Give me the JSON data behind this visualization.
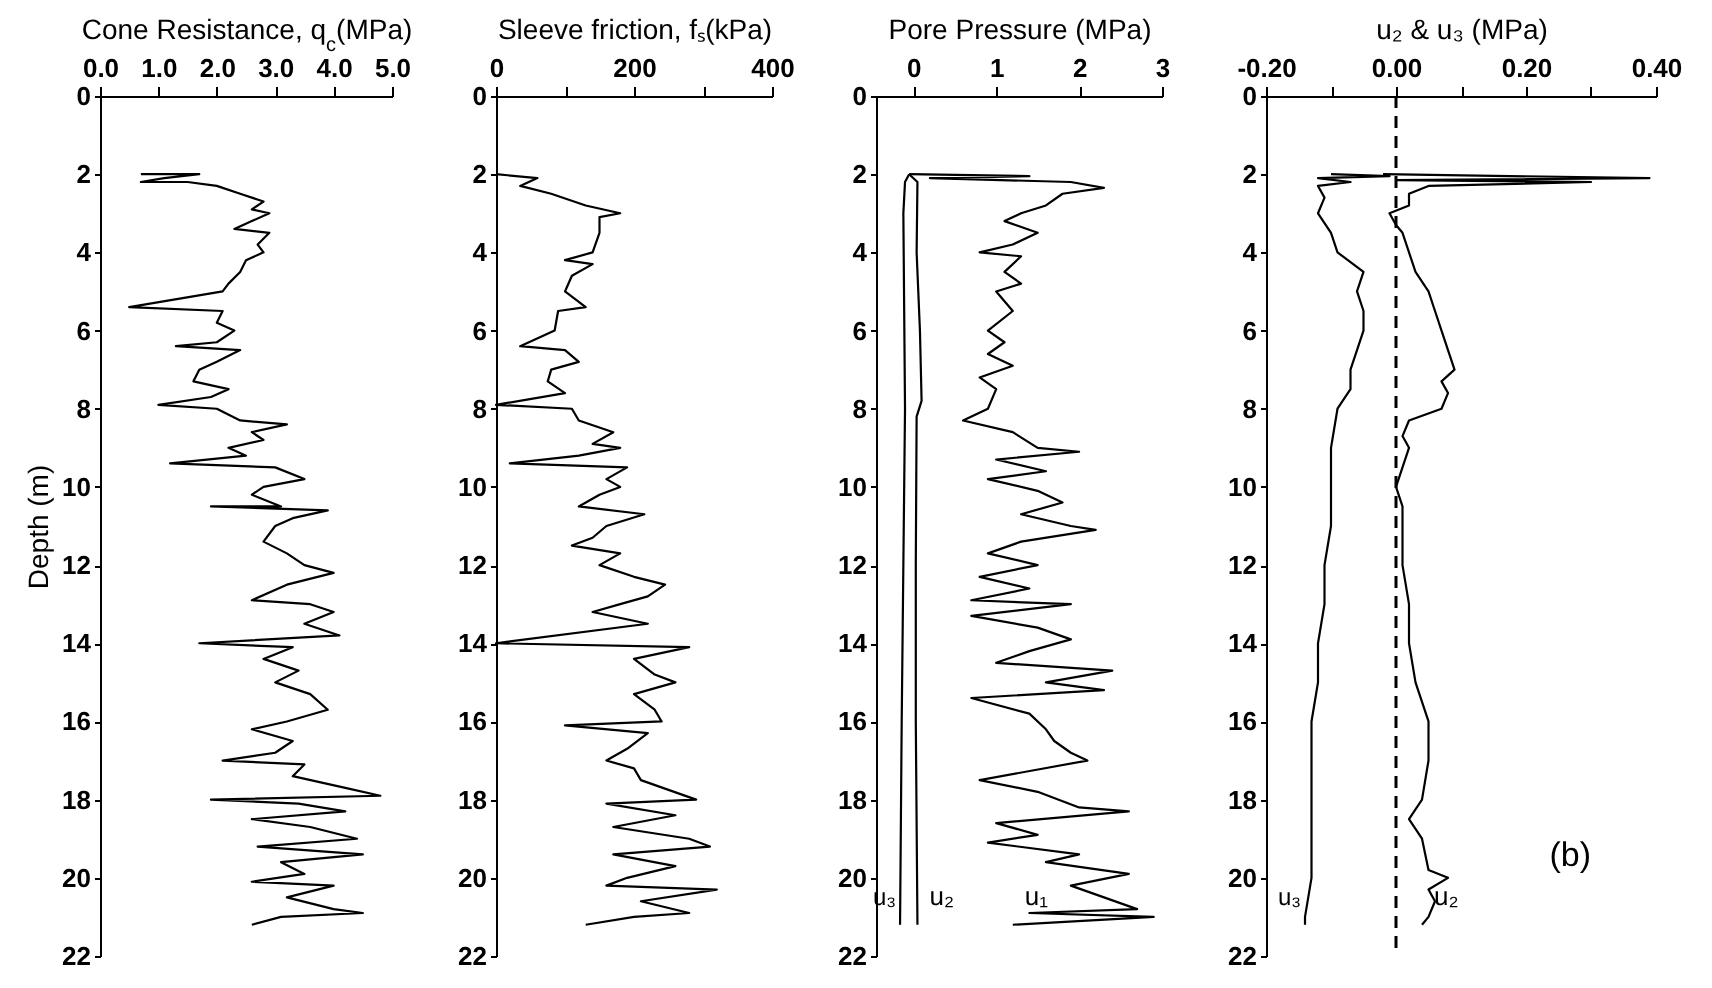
{
  "chart_data": [
    {
      "type": "line",
      "orientation": "horizontal",
      "xlabel": "Cone Resistance, q$_{c}$(MPa)",
      "ylabel": "Depth (m)",
      "xlim": [
        0,
        5
      ],
      "xticks": [
        {
          "value": 0,
          "label": "0.0"
        },
        {
          "value": 1,
          "label": "1.0"
        },
        {
          "value": 2,
          "label": "2.0"
        },
        {
          "value": 3,
          "label": "3.0"
        },
        {
          "value": 4,
          "label": "4.0"
        },
        {
          "value": 5,
          "label": "5.0"
        }
      ],
      "ylim": [
        22,
        0
      ],
      "yticks": [
        0,
        2,
        4,
        6,
        8,
        10,
        12,
        14,
        16,
        18,
        20,
        22
      ],
      "series": [
        {
          "color": "#000000",
          "x": [
            2.0,
            2.0,
            2.1,
            2.2,
            2.2,
            2.3,
            2.5,
            2.7,
            2.9,
            3.0,
            3.2,
            3.4,
            3.5,
            3.8,
            4.0,
            4.2,
            4.5,
            4.8,
            5.0,
            5.4,
            5.5,
            5.8,
            6.0,
            6.3,
            6.4,
            6.5,
            6.8,
            7.0,
            7.3,
            7.5,
            7.7,
            7.9,
            8.0,
            8.3,
            8.4,
            8.6,
            8.8,
            9.0,
            9.2,
            9.4,
            9.5,
            9.8,
            10.0,
            10.2,
            10.5,
            10.5,
            10.6,
            10.8,
            11.0,
            11.4,
            11.7,
            12.0,
            12.2,
            12.5,
            12.9,
            13.0,
            13.2,
            13.5,
            13.8,
            14.0,
            14.1,
            14.4,
            14.7,
            15.0,
            15.3,
            15.7,
            16.0,
            16.2,
            16.5,
            16.8,
            17.0,
            17.1,
            17.4,
            17.7,
            17.9,
            18.0,
            18.1,
            18.3,
            18.5,
            18.7,
            19.0,
            19.2,
            19.4,
            19.6,
            19.9,
            20.1,
            20.2,
            20.5,
            20.8,
            20.9,
            21.0,
            21.2
          ],
          "values": [
            0.7,
            1.7,
            1.1,
            0.7,
            1.5,
            2.0,
            2.4,
            2.8,
            2.6,
            2.9,
            2.6,
            2.3,
            2.9,
            2.7,
            2.8,
            2.5,
            2.4,
            2.2,
            2.1,
            0.5,
            2.1,
            2.0,
            2.3,
            2.0,
            1.3,
            2.4,
            2.0,
            1.7,
            1.6,
            2.2,
            1.9,
            1.0,
            2.0,
            2.4,
            3.2,
            2.6,
            2.8,
            2.2,
            2.5,
            1.2,
            3.0,
            3.5,
            2.8,
            2.6,
            3.1,
            1.9,
            3.9,
            3.3,
            3.0,
            2.8,
            3.2,
            3.5,
            4.0,
            3.2,
            2.6,
            3.6,
            4.0,
            3.5,
            4.1,
            1.7,
            3.3,
            2.8,
            3.4,
            3.0,
            3.6,
            3.9,
            3.2,
            2.6,
            3.3,
            3.0,
            2.1,
            3.5,
            3.3,
            4.2,
            4.8,
            1.9,
            3.4,
            4.2,
            2.6,
            3.6,
            4.4,
            2.7,
            4.5,
            3.1,
            3.5,
            2.6,
            4.0,
            3.2,
            4.0,
            4.5,
            3.1,
            2.6
          ]
        }
      ]
    },
    {
      "type": "line",
      "orientation": "horizontal",
      "xlabel": "Sleeve friction, fₛ(kPa)",
      "xlim": [
        0,
        400
      ],
      "xticks": [
        0,
        {
          "value": 100,
          "label": null
        },
        200,
        {
          "value": 300,
          "label": null
        },
        400
      ],
      "ylim": [
        22,
        0
      ],
      "yticks": [
        0,
        2,
        4,
        6,
        8,
        10,
        12,
        14,
        16,
        18,
        20,
        22
      ],
      "series": [
        {
          "color": "#000000",
          "x": [
            2.0,
            2.1,
            2.3,
            2.5,
            2.8,
            3.0,
            3.1,
            3.5,
            4.0,
            4.2,
            4.3,
            4.6,
            5.0,
            5.4,
            5.5,
            6.0,
            6.4,
            6.5,
            6.8,
            7.0,
            7.3,
            7.6,
            7.9,
            8.0,
            8.3,
            8.6,
            8.9,
            9.0,
            9.2,
            9.4,
            9.5,
            9.8,
            10.0,
            10.2,
            10.5,
            10.7,
            11.0,
            11.3,
            11.5,
            11.7,
            12.0,
            12.3,
            12.5,
            12.8,
            13.0,
            13.2,
            13.5,
            14.0,
            14.1,
            14.4,
            14.8,
            15.0,
            15.3,
            15.7,
            16.0,
            16.1,
            16.3,
            16.7,
            17.0,
            17.2,
            17.5,
            18.0,
            18.1,
            18.4,
            18.7,
            19.0,
            19.2,
            19.4,
            19.7,
            20.0,
            20.2,
            20.3,
            20.6,
            20.9,
            21.0,
            21.2
          ],
          "values": [
            0,
            60,
            35,
            80,
            130,
            180,
            150,
            150,
            140,
            100,
            140,
            110,
            100,
            130,
            90,
            85,
            35,
            100,
            120,
            80,
            75,
            100,
            0,
            110,
            120,
            170,
            140,
            180,
            120,
            20,
            190,
            160,
            180,
            150,
            120,
            215,
            160,
            140,
            110,
            180,
            150,
            200,
            245,
            220,
            180,
            140,
            220,
            0,
            280,
            200,
            230,
            260,
            200,
            230,
            240,
            100,
            220,
            190,
            160,
            200,
            210,
            290,
            160,
            260,
            170,
            280,
            310,
            170,
            260,
            190,
            160,
            320,
            210,
            280,
            200,
            130
          ]
        }
      ]
    },
    {
      "type": "line",
      "orientation": "horizontal",
      "xlabel": "Pore Pressure (MPa)",
      "xlim": [
        -0.45,
        3
      ],
      "xticks": [
        0,
        1,
        2,
        3
      ],
      "ylim": [
        22,
        0
      ],
      "yticks": [
        0,
        2,
        4,
        6,
        8,
        10,
        12,
        14,
        16,
        18,
        20,
        22
      ],
      "series": [
        {
          "name": "u₁",
          "color": "#000000",
          "x": [
            2.0,
            2.05,
            2.1,
            2.2,
            2.35,
            2.5,
            2.8,
            3.0,
            3.2,
            3.5,
            3.8,
            4.0,
            4.1,
            4.5,
            4.8,
            5.0,
            5.5,
            6.0,
            6.3,
            6.6,
            6.9,
            7.2,
            7.5,
            8.0,
            8.3,
            8.6,
            9.0,
            9.1,
            9.3,
            9.6,
            9.8,
            10.1,
            10.4,
            10.7,
            11.0,
            11.1,
            11.4,
            11.7,
            12.0,
            12.3,
            12.6,
            12.9,
            13.0,
            13.3,
            13.6,
            13.9,
            14.2,
            14.5,
            14.7,
            15.0,
            15.2,
            15.4,
            15.8,
            16.2,
            16.5,
            16.8,
            17.0,
            17.5,
            17.8,
            18.2,
            18.3,
            18.6,
            18.9,
            19.1,
            19.4,
            19.6,
            19.9,
            20.2,
            20.5,
            20.8,
            20.9,
            21.0,
            21.2
          ],
          "values": [
            -0.05,
            1.4,
            0.2,
            1.9,
            2.3,
            1.8,
            1.6,
            1.3,
            1.1,
            1.5,
            1.2,
            0.8,
            1.3,
            1.1,
            1.3,
            1.0,
            1.2,
            0.9,
            1.1,
            0.9,
            1.2,
            0.8,
            1.0,
            0.9,
            0.6,
            1.2,
            1.5,
            2.0,
            1.0,
            1.6,
            0.9,
            1.5,
            1.8,
            1.3,
            1.9,
            2.2,
            1.3,
            0.9,
            1.5,
            0.8,
            1.4,
            0.7,
            1.9,
            0.7,
            1.5,
            1.9,
            1.4,
            1.0,
            2.4,
            1.6,
            2.3,
            0.7,
            1.4,
            1.6,
            1.7,
            1.9,
            2.1,
            0.8,
            1.5,
            2.0,
            2.6,
            1.0,
            1.5,
            0.9,
            2.0,
            1.6,
            2.6,
            1.9,
            2.3,
            2.7,
            1.4,
            2.9,
            1.2
          ]
        },
        {
          "name": "u₂",
          "color": "#000000",
          "x": [
            2.0,
            2.2,
            4.0,
            6.0,
            7.8,
            8.2,
            12.0,
            16.0,
            21.2
          ],
          "values": [
            -0.05,
            0.05,
            0.04,
            0.08,
            0.1,
            0.04,
            0.03,
            0.03,
            0.05
          ]
        },
        {
          "name": "u₃",
          "color": "#000000",
          "x": [
            2.0,
            2.2,
            3.0,
            8.0,
            12.0,
            16.0,
            21.2
          ],
          "values": [
            -0.05,
            -0.1,
            -0.12,
            -0.1,
            -0.12,
            -0.14,
            -0.16
          ]
        }
      ]
    },
    {
      "type": "line",
      "orientation": "horizontal",
      "xlabel": "u₂ & u₃ (MPa)",
      "xlim": [
        -0.2,
        0.4
      ],
      "xticks": [
        {
          "value": -0.2,
          "label": "-0.20"
        },
        {
          "value": -0.1,
          "label": null
        },
        {
          "value": 0,
          "label": "0.00"
        },
        {
          "value": 0.1,
          "label": null
        },
        {
          "value": 0.2,
          "label": "0.20"
        },
        {
          "value": 0.3,
          "label": null
        },
        {
          "value": 0.4,
          "label": "0.40"
        }
      ],
      "ylim": [
        22,
        0
      ],
      "yticks": [
        0,
        2,
        4,
        6,
        8,
        10,
        12,
        14,
        16,
        18,
        20,
        22
      ],
      "ref_lines": [
        {
          "axis": "x",
          "value": 0,
          "line_style": "dashed",
          "color": "#000000"
        }
      ],
      "annotations": [
        "(b)"
      ],
      "series": [
        {
          "name": "u₂",
          "color": "#000000",
          "x": [
            2.0,
            2.1,
            2.15,
            2.2,
            2.3,
            2.5,
            2.8,
            3.0,
            3.3,
            3.5,
            4.0,
            4.5,
            5.0,
            5.5,
            6.0,
            6.5,
            7.0,
            7.3,
            7.6,
            8.0,
            8.3,
            8.7,
            9.0,
            9.5,
            10.0,
            10.5,
            11.0,
            12.0,
            13.0,
            14.0,
            15.0,
            16.0,
            17.0,
            18.0,
            18.5,
            19.0,
            19.8,
            20.0,
            20.3,
            20.6,
            21.0,
            21.2
          ],
          "values": [
            -0.02,
            0.39,
            0.0,
            0.3,
            0.05,
            0.02,
            0.02,
            -0.01,
            0.0,
            0.01,
            0.02,
            0.03,
            0.05,
            0.06,
            0.07,
            0.08,
            0.09,
            0.07,
            0.08,
            0.07,
            0.02,
            0.01,
            0.02,
            0.01,
            0.0,
            0.01,
            0.01,
            0.01,
            0.02,
            0.02,
            0.03,
            0.05,
            0.05,
            0.04,
            0.02,
            0.04,
            0.05,
            0.08,
            0.05,
            0.06,
            0.05,
            0.04
          ]
        },
        {
          "name": "u₃",
          "color": "#000000",
          "x": [
            2.0,
            2.05,
            2.1,
            2.2,
            2.3,
            2.6,
            3.0,
            3.5,
            4.0,
            4.5,
            5.0,
            5.5,
            6.0,
            6.5,
            7.0,
            7.5,
            8.0,
            9.0,
            10.0,
            11.0,
            12.0,
            13.0,
            14.0,
            15.0,
            16.0,
            17.0,
            18.0,
            19.0,
            20.0,
            21.0,
            21.2
          ],
          "values": [
            -0.1,
            -0.01,
            -0.12,
            -0.07,
            -0.12,
            -0.11,
            -0.12,
            -0.1,
            -0.09,
            -0.05,
            -0.06,
            -0.05,
            -0.05,
            -0.06,
            -0.07,
            -0.07,
            -0.09,
            -0.1,
            -0.1,
            -0.1,
            -0.11,
            -0.11,
            -0.12,
            -0.12,
            -0.13,
            -0.13,
            -0.13,
            -0.13,
            -0.13,
            -0.14,
            -0.14
          ]
        }
      ]
    }
  ]
}
